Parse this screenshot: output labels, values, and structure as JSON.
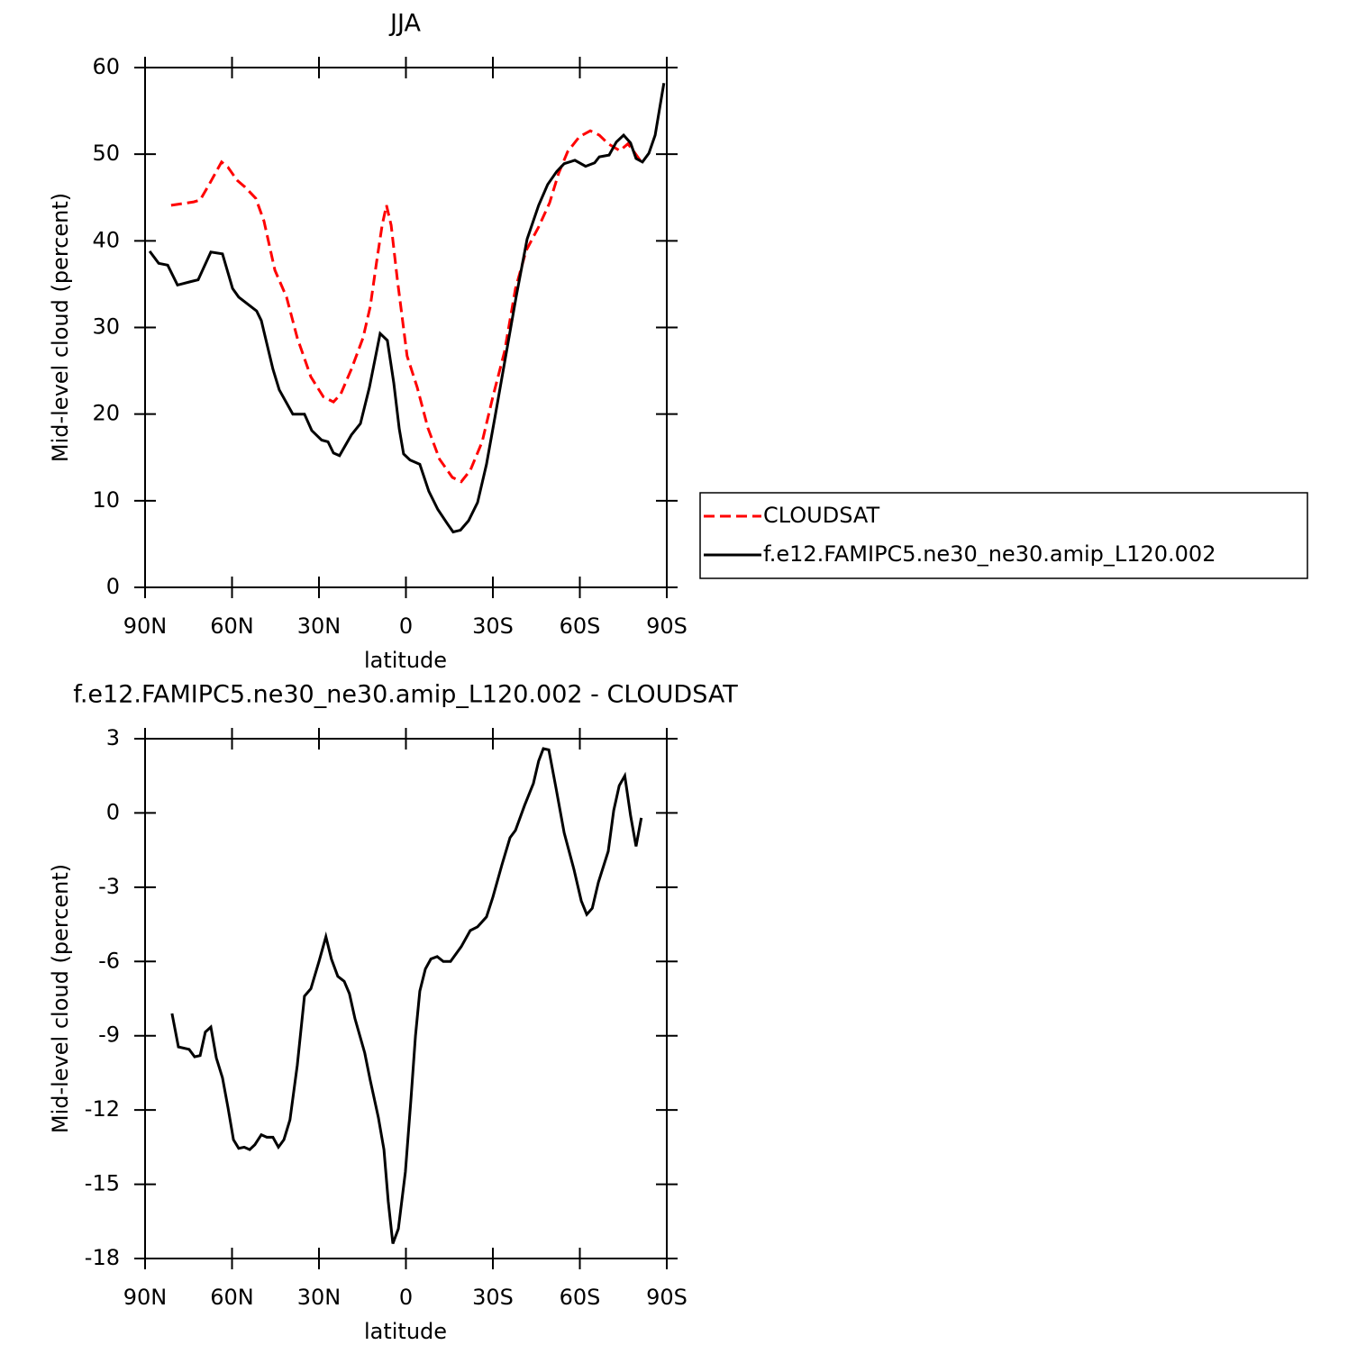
{
  "chart_data": [
    {
      "type": "line",
      "title": "JJA",
      "xlabel": "latitude",
      "ylabel": "Mid-level cloud (percent)",
      "xlim": [
        90,
        -90
      ],
      "xticks": [
        {
          "value": 90,
          "label": "90N"
        },
        {
          "value": 60,
          "label": "60N"
        },
        {
          "value": 30,
          "label": "30N"
        },
        0,
        {
          "value": -30,
          "label": "30S"
        },
        {
          "value": -60,
          "label": "60S"
        },
        {
          "value": -90,
          "label": "90S"
        }
      ],
      "ylim": [
        0,
        60
      ],
      "yticks": [
        0,
        10,
        20,
        30,
        40,
        50,
        60
      ],
      "legend": "right",
      "series": [
        {
          "name": "CLOUDSAT",
          "color": "#ff0000",
          "dash": true,
          "x": [
            81,
            73.2,
            71,
            67.9,
            63.6,
            61.4,
            58.3,
            55.5,
            51.8,
            49,
            45.2,
            41.2,
            37.5,
            32.8,
            28.5,
            25,
            22.5,
            18.8,
            14.8,
            12.3,
            10.1,
            8.2,
            6.7,
            5.1,
            3,
            -0.4,
            -3.9,
            -7.6,
            -11.6,
            -16,
            -19.1,
            -22.2,
            -26.3,
            -30,
            -34,
            -37.8,
            -41.5,
            -45.8,
            -49.6,
            -52.7,
            -55.8,
            -59.8,
            -63.6,
            -66.7,
            -69.8,
            -73.8,
            -76.6,
            -79.1,
            -81.2
          ],
          "values": [
            44.1,
            44.5,
            44.7,
            46.5,
            49.1,
            48.5,
            47,
            46.2,
            44.9,
            42.3,
            36.6,
            33.5,
            28.8,
            24.3,
            22,
            21.4,
            22.3,
            25.2,
            28.8,
            32.4,
            37.6,
            41.8,
            44.1,
            41.8,
            35.6,
            26.7,
            23.1,
            18.4,
            14.8,
            12.7,
            12.2,
            13.5,
            16.8,
            22,
            27.2,
            34.5,
            38.9,
            41.6,
            44.4,
            47.8,
            50.3,
            52,
            52.7,
            52.2,
            51.2,
            50.4,
            51.2,
            50.1,
            49.1
          ]
        },
        {
          "name": "f.e12.FAMIPC5.ne30_ne30.amip_L120.002",
          "color": "#000000",
          "dash": false,
          "x": [
            88.4,
            85.3,
            82.2,
            78.8,
            74.1,
            71.7,
            67.3,
            63.3,
            59.8,
            57.7,
            51.5,
            49.9,
            45.9,
            43.7,
            39,
            35,
            32.5,
            29.1,
            26.9,
            25,
            22.9,
            18.8,
            15.7,
            12.6,
            8.9,
            6.4,
            4.2,
            2.3,
            0.8,
            -1.4,
            -4.8,
            -7.9,
            -11,
            -14.4,
            -16.3,
            -18.8,
            -21.6,
            -24.7,
            -27.8,
            -30.9,
            -34,
            -38.1,
            -41.8,
            -45.8,
            -48.9,
            -52,
            -54.6,
            -58.3,
            -62,
            -65.1,
            -66.7,
            -70.1,
            -72.6,
            -75.1,
            -77.5,
            -79.4,
            -81.6,
            -83.8,
            -86,
            -87.8,
            -89
          ],
          "values": [
            38.8,
            37.4,
            37.2,
            34.9,
            35.3,
            35.5,
            38.7,
            38.5,
            34.5,
            33.5,
            31.9,
            30.8,
            25.2,
            22.8,
            20,
            20,
            18.1,
            17,
            16.8,
            15.5,
            15.2,
            17.6,
            18.9,
            23.1,
            29.3,
            28.5,
            23.6,
            18.3,
            15.4,
            14.7,
            14.2,
            11.1,
            9,
            7.3,
            6.4,
            6.6,
            7.7,
            9.8,
            14.2,
            20,
            25.9,
            33.7,
            40.2,
            44.1,
            46.5,
            48,
            48.9,
            49.3,
            48.6,
            49,
            49.7,
            49.9,
            51.4,
            52.2,
            51.3,
            49.5,
            49.1,
            50.1,
            52.2,
            55.8,
            58.2
          ]
        }
      ]
    },
    {
      "type": "line",
      "title": "f.e12.FAMIPC5.ne30_ne30.amip_L120.002 - CLOUDSAT",
      "xlabel": "latitude",
      "ylabel": "Mid-level cloud (percent)",
      "xlim": [
        90,
        -90
      ],
      "xticks": [
        {
          "value": 90,
          "label": "90N"
        },
        {
          "value": 60,
          "label": "60N"
        },
        {
          "value": 30,
          "label": "30N"
        },
        0,
        {
          "value": -30,
          "label": "30S"
        },
        {
          "value": -60,
          "label": "60S"
        },
        {
          "value": -90,
          "label": "90S"
        }
      ],
      "ylim": [
        -18,
        3
      ],
      "yticks": [
        -18,
        -15,
        -12,
        -9,
        -6,
        -3,
        0,
        3
      ],
      "series": [
        {
          "color": "#000000",
          "dash": false,
          "x": [
            80.7,
            78.5,
            74.8,
            72.9,
            71,
            69.2,
            67.3,
            65.4,
            63.3,
            61.4,
            59.5,
            57.7,
            55.8,
            53.9,
            52.1,
            49.9,
            48,
            45.9,
            44,
            42.1,
            40,
            37.5,
            35,
            32.8,
            30,
            27.6,
            25.7,
            23.5,
            21.3,
            19.5,
            17.6,
            14.2,
            12.3,
            9.5,
            7.6,
            6.1,
            4.5,
            2.6,
            0.2,
            -1.7,
            -3.3,
            -4.8,
            -6.7,
            -8.6,
            -10.8,
            -12.9,
            -15.4,
            -19.1,
            -22.2,
            -24.7,
            -27.8,
            -30,
            -33.1,
            -35.9,
            -37.8,
            -40.9,
            -44,
            -45.8,
            -47.4,
            -49.3,
            -51.8,
            -54.6,
            -58,
            -60.5,
            -62.4,
            -64.3,
            -66.4,
            -69.8,
            -71.7,
            -73.6,
            -75.5,
            -77.5,
            -79.4,
            -81.2
          ],
          "values": [
            -8.1,
            -9.45,
            -9.55,
            -9.85,
            -9.8,
            -8.85,
            -8.65,
            -9.9,
            -10.7,
            -11.9,
            -13.2,
            -13.55,
            -13.5,
            -13.6,
            -13.4,
            -13,
            -13.1,
            -13.1,
            -13.5,
            -13.2,
            -12.4,
            -10.2,
            -7.4,
            -7.1,
            -6,
            -5,
            -5.9,
            -6.6,
            -6.8,
            -7.3,
            -8.3,
            -9.7,
            -10.8,
            -12.3,
            -13.6,
            -15.7,
            -17.4,
            -16.8,
            -14.5,
            -11.6,
            -9,
            -7.2,
            -6.3,
            -5.9,
            -5.8,
            -6,
            -6,
            -5.4,
            -4.75,
            -4.6,
            -4.2,
            -3.4,
            -2.1,
            -1,
            -0.7,
            0.3,
            1.2,
            2.1,
            2.6,
            2.55,
            1,
            -0.8,
            -2.3,
            -3.55,
            -4.1,
            -3.85,
            -2.8,
            -1.55,
            0.1,
            1.1,
            1.5,
            -0.1,
            -1.35,
            -0.2
          ]
        }
      ]
    }
  ]
}
